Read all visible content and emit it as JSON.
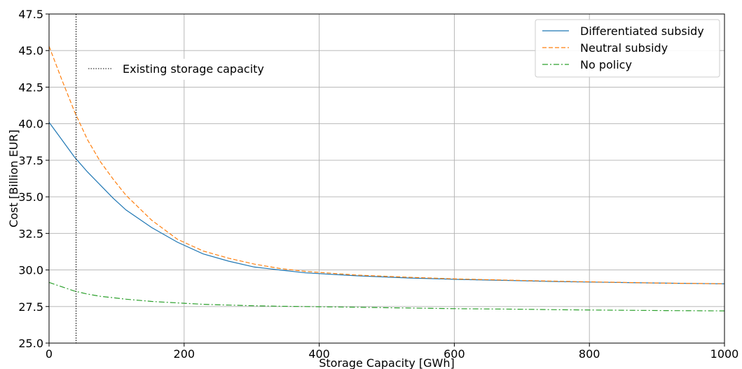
{
  "chart_data": {
    "type": "line",
    "title": "",
    "xlabel": "Storage Capacity [GWh]",
    "ylabel": "Cost [Billion EUR]",
    "xlim": [
      0,
      1000
    ],
    "ylim": [
      25.0,
      47.5
    ],
    "xticks": [
      0,
      200,
      400,
      600,
      800,
      1000
    ],
    "xtick_labels": [
      "0",
      "200",
      "400",
      "600",
      "800",
      "1000"
    ],
    "yticks": [
      25.0,
      27.5,
      30.0,
      32.5,
      35.0,
      37.5,
      40.0,
      42.5,
      45.0,
      47.5
    ],
    "ytick_labels": [
      "25.0",
      "27.5",
      "30.0",
      "32.5",
      "35.0",
      "37.5",
      "40.0",
      "42.5",
      "45.0",
      "47.5"
    ],
    "grid": true,
    "legend_position": "top-right",
    "x": [
      0,
      19,
      38,
      57,
      76,
      95,
      114,
      152,
      190,
      228,
      266,
      304,
      342,
      380,
      456,
      532,
      608,
      684,
      760,
      836,
      912,
      1000
    ],
    "series": [
      {
        "name": "Differentiated subsidy",
        "color": "#1f77b4",
        "dash": "solid",
        "values": [
          40.1,
          38.9,
          37.7,
          36.7,
          35.8,
          34.9,
          34.1,
          32.9,
          31.9,
          31.1,
          30.6,
          30.2,
          30.0,
          29.8,
          29.6,
          29.45,
          29.35,
          29.28,
          29.2,
          29.15,
          29.1,
          29.05
        ]
      },
      {
        "name": "Neutral subsidy",
        "color": "#ff7f0e",
        "dash": "dashed",
        "values": [
          45.3,
          43.0,
          40.8,
          38.9,
          37.4,
          36.2,
          35.1,
          33.4,
          32.1,
          31.3,
          30.8,
          30.4,
          30.1,
          29.9,
          29.65,
          29.5,
          29.38,
          29.3,
          29.22,
          29.16,
          29.1,
          29.06
        ]
      },
      {
        "name": "No policy",
        "color": "#2ca02c",
        "dash": "dashdot",
        "values": [
          29.15,
          28.85,
          28.55,
          28.35,
          28.2,
          28.1,
          28.0,
          27.85,
          27.75,
          27.65,
          27.6,
          27.55,
          27.52,
          27.5,
          27.45,
          27.4,
          27.35,
          27.32,
          27.28,
          27.25,
          27.22,
          27.2
        ]
      }
    ],
    "annotations": [
      {
        "type": "vline",
        "x": 40,
        "label": "Existing storage capacity",
        "color": "#000000",
        "dash": "dotted"
      }
    ]
  }
}
